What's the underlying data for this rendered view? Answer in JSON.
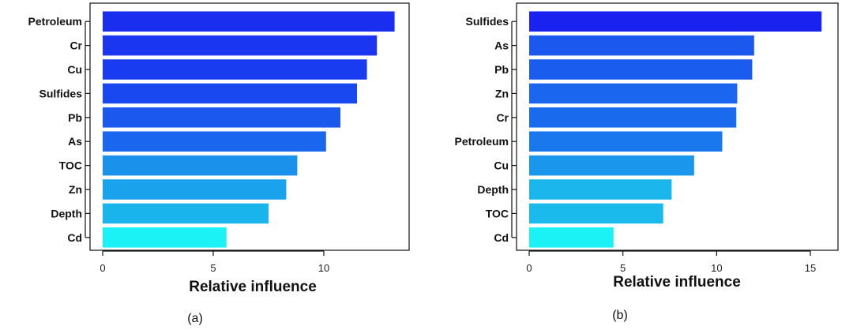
{
  "chart_data": [
    {
      "type": "bar",
      "orientation": "horizontal",
      "panel": "(a)",
      "xlabel": "Relative influence",
      "ylabel": "",
      "xlim": [
        0,
        13.5
      ],
      "xticks": [
        0,
        5,
        10
      ],
      "categories": [
        "Petroleum",
        "Cr",
        "Cu",
        "Sulfides",
        "Pb",
        "As",
        "TOC",
        "Zn",
        "Depth",
        "Cd"
      ],
      "values": [
        13.2,
        12.4,
        11.95,
        11.5,
        10.75,
        10.1,
        8.8,
        8.3,
        7.5,
        5.6
      ],
      "colors": [
        "#1a2ef0",
        "#1a36f0",
        "#1a3cf0",
        "#1a48f0",
        "#1a58ee",
        "#1a66ee",
        "#1a92ec",
        "#1aa2ec",
        "#1ab4ec",
        "#1af2f5"
      ]
    },
    {
      "type": "bar",
      "orientation": "horizontal",
      "panel": "(b)",
      "xlabel": "Relative influence",
      "ylabel": "",
      "xlim": [
        0,
        15.8
      ],
      "xticks": [
        0,
        5,
        10,
        15
      ],
      "categories": [
        "Sulfides",
        "As",
        "Pb",
        "Zn",
        "Cr",
        "Petroleum",
        "Cu",
        "Depth",
        "TOC",
        "Cd"
      ],
      "values": [
        15.6,
        12.0,
        11.9,
        11.1,
        11.05,
        10.3,
        8.8,
        7.6,
        7.15,
        4.5
      ],
      "colors": [
        "#1a22f0",
        "#1a58ee",
        "#1a5cee",
        "#1a66ee",
        "#1a6aee",
        "#1a78ee",
        "#1a96ec",
        "#1ab6ec",
        "#1abaec",
        "#1af2f5"
      ]
    }
  ]
}
